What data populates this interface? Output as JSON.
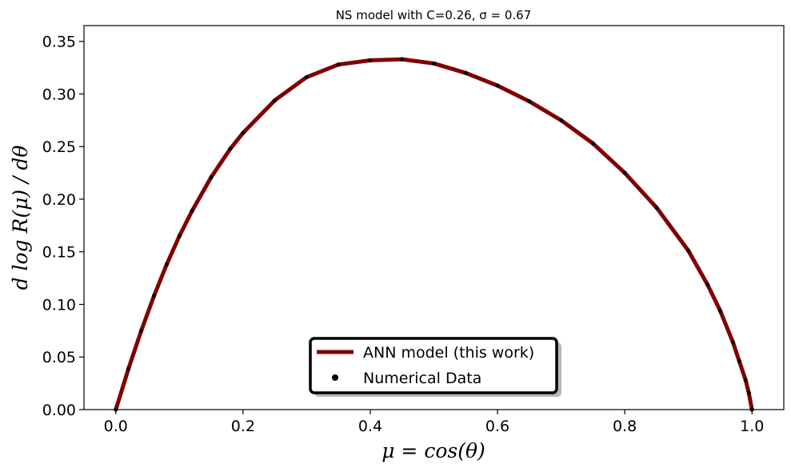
{
  "chart_data": {
    "type": "line",
    "title": "NS model with C=0.26, σ = 0.67",
    "xlabel": "μ = cos(θ)",
    "ylabel": "d log R(μ) / dθ",
    "xlim": [
      -0.05,
      1.05
    ],
    "ylim": [
      0.0,
      0.365
    ],
    "xticks": [
      0.0,
      0.2,
      0.4,
      0.6,
      0.8,
      1.0
    ],
    "xtick_labels": [
      "0.0",
      "0.2",
      "0.4",
      "0.6",
      "0.8",
      "1.0"
    ],
    "yticks": [
      0.0,
      0.05,
      0.1,
      0.15,
      0.2,
      0.25,
      0.3,
      0.35
    ],
    "ytick_labels": [
      "0.00",
      "0.05",
      "0.10",
      "0.15",
      "0.20",
      "0.25",
      "0.30",
      "0.35"
    ],
    "grid": false,
    "legend_position": "bottom-center",
    "series": [
      {
        "name": "ANN model (this work)",
        "kind": "line",
        "color": "#800000",
        "x": [
          0.0,
          0.02,
          0.04,
          0.06,
          0.08,
          0.1,
          0.12,
          0.15,
          0.18,
          0.2,
          0.25,
          0.3,
          0.35,
          0.4,
          0.45,
          0.5,
          0.55,
          0.6,
          0.65,
          0.7,
          0.75,
          0.8,
          0.85,
          0.9,
          0.93,
          0.95,
          0.97,
          0.98,
          0.99,
          0.995,
          1.0
        ],
        "y": [
          0.0,
          0.039,
          0.075,
          0.108,
          0.138,
          0.165,
          0.189,
          0.221,
          0.248,
          0.263,
          0.294,
          0.316,
          0.328,
          0.332,
          0.333,
          0.329,
          0.32,
          0.308,
          0.293,
          0.275,
          0.253,
          0.225,
          0.192,
          0.151,
          0.119,
          0.094,
          0.064,
          0.046,
          0.028,
          0.016,
          0.0
        ]
      },
      {
        "name": "Numerical Data",
        "kind": "scatter",
        "color": "#000000",
        "x": [
          0.0,
          0.02,
          0.04,
          0.06,
          0.08,
          0.1,
          0.12,
          0.15,
          0.18,
          0.2,
          0.25,
          0.3,
          0.35,
          0.4,
          0.45,
          0.5,
          0.55,
          0.6,
          0.65,
          0.7,
          0.75,
          0.8,
          0.85,
          0.9,
          0.93,
          0.95,
          0.97,
          0.98,
          0.99,
          0.995,
          1.0
        ],
        "y": [
          0.0,
          0.039,
          0.075,
          0.108,
          0.138,
          0.165,
          0.189,
          0.221,
          0.248,
          0.263,
          0.294,
          0.316,
          0.328,
          0.332,
          0.333,
          0.329,
          0.32,
          0.308,
          0.293,
          0.275,
          0.253,
          0.225,
          0.192,
          0.151,
          0.119,
          0.094,
          0.064,
          0.046,
          0.028,
          0.016,
          0.0
        ]
      }
    ]
  }
}
